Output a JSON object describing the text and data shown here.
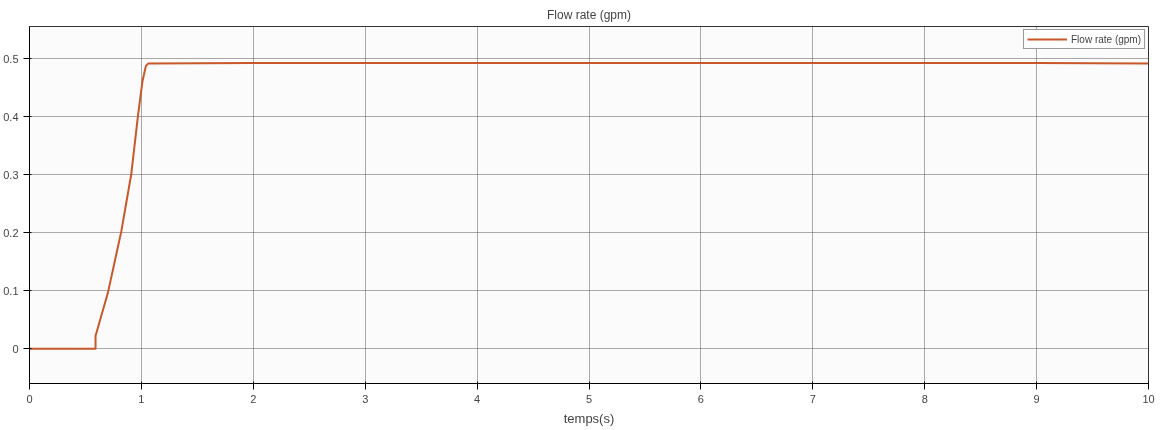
{
  "chart_data": {
    "type": "line",
    "title": "Flow rate (gpm)",
    "xlabel": "temps(s)",
    "series": [
      {
        "name": "Flow rate (gpm)",
        "color": "#c8582a",
        "x": [
          0,
          0.59,
          0.59,
          0.7,
          0.82,
          0.91,
          0.97,
          1.01,
          1.04,
          1.06,
          2,
          3,
          4,
          5,
          6,
          7,
          8,
          9,
          10
        ],
        "values": [
          0,
          0,
          0.022,
          0.096,
          0.202,
          0.302,
          0.403,
          0.462,
          0.488,
          0.492,
          0.493,
          0.493,
          0.493,
          0.493,
          0.493,
          0.493,
          0.493,
          0.493,
          0.492
        ]
      }
    ],
    "xlim": [
      0,
      10
    ],
    "xticks": [
      0,
      1,
      2,
      3,
      4,
      5,
      6,
      7,
      8,
      9,
      10
    ],
    "ylim": [
      -0.06,
      0.556
    ],
    "yticks": [
      0,
      0.1,
      0.2,
      0.3,
      0.4,
      0.5
    ],
    "grid": true,
    "legend": "top right",
    "line_style": "solid",
    "marker": "none"
  }
}
